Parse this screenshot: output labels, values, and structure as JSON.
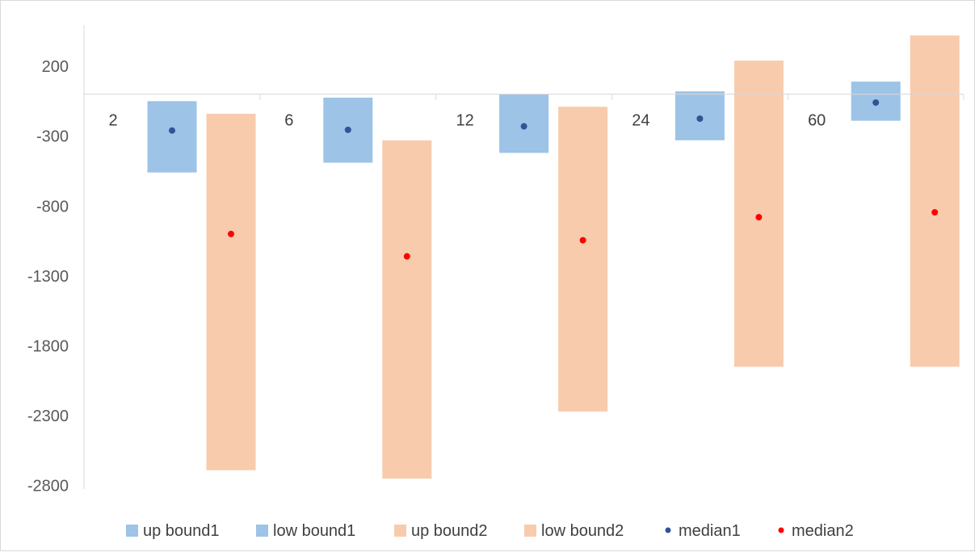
{
  "chart_data": {
    "type": "bar",
    "title": "",
    "xlabel": "",
    "ylabel": "",
    "categories": [
      "2",
      "6",
      "12",
      "24",
      "60"
    ],
    "y_ticks": [
      200,
      -300,
      -800,
      -1300,
      -1800,
      -2300,
      -2800
    ],
    "ylim": [
      -2880,
      400
    ],
    "grid": false,
    "legend_position": "bottom",
    "series": [
      {
        "name": "up bound1",
        "role": "range1_top",
        "color": "#9dc3e6",
        "values": [
          -50,
          -25,
          0,
          20,
          90
        ]
      },
      {
        "name": "low bound1",
        "role": "range1_bottom",
        "color": "#9dc3e6",
        "values": [
          -560,
          -490,
          -420,
          -330,
          -190
        ]
      },
      {
        "name": "up bound2",
        "role": "range2_top",
        "color": "#f8cbad",
        "values": [
          -140,
          -330,
          -90,
          240,
          420
        ]
      },
      {
        "name": "low bound2",
        "role": "range2_bottom",
        "color": "#f8cbad",
        "values": [
          -2690,
          -2750,
          -2270,
          -1950,
          -1950
        ]
      },
      {
        "name": "median1",
        "role": "median1",
        "color": "#2f5597",
        "values": [
          -260,
          -255,
          -230,
          -175,
          -60
        ]
      },
      {
        "name": "median2",
        "role": "median2",
        "color": "#ff0000",
        "values": [
          -1000,
          -1160,
          -1045,
          -880,
          -845
        ]
      }
    ]
  }
}
